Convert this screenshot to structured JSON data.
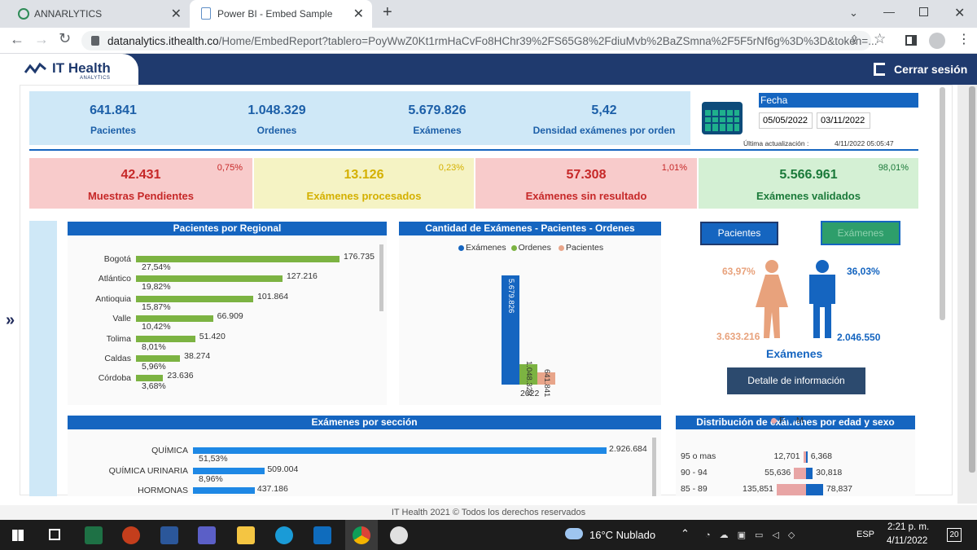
{
  "browser": {
    "tabs": [
      {
        "title": "ANNARLYTICS",
        "active": false
      },
      {
        "title": "Power BI - Embed Sample",
        "active": true
      }
    ],
    "url_domain": "datanalytics.ithealth.co",
    "url_path": "/Home/EmbedReport?tablero=PoyWwZ0Kt1rmHaCvFo8HChr39%2FS65G8%2FdiuMvb%2BaZSmna%2F5F5rNf6g%3D%3D&token=..."
  },
  "header": {
    "logo_line1": "IT Health",
    "logo_line2": "ANALYTICS",
    "logout_label": "Cerrar sesión"
  },
  "kpis": [
    {
      "value": "641.841",
      "label": "Pacientes"
    },
    {
      "value": "1.048.329",
      "label": "Ordenes"
    },
    {
      "value": "5.679.826",
      "label": "Exámenes"
    },
    {
      "value": "5,42",
      "label": "Densidad exámenes por orden"
    }
  ],
  "date_filter": {
    "label": "Fecha",
    "from": "05/05/2022",
    "to": "03/11/2022",
    "updated_label": "Última actualización :",
    "updated_value": "4/11/2022 05:05:47"
  },
  "status_cards": [
    {
      "value": "42.431",
      "label": "Muestras Pendientes",
      "pct": "0,75%",
      "bg": "#f8cbcb",
      "fg": "#c62828",
      "pctfg": "#c62828"
    },
    {
      "value": "13.126",
      "label": "Exámenes procesados",
      "pct": "0,23%",
      "bg": "#f5f3c4",
      "fg": "#d4b000",
      "pctfg": "#d4b000"
    },
    {
      "value": "57.308",
      "label": "Exámenes sin resultado",
      "pct": "1,01%",
      "bg": "#f8cbcb",
      "fg": "#c62828",
      "pctfg": "#c62828"
    },
    {
      "value": "5.566.961",
      "label": "Exámenes validados",
      "pct": "98,01%",
      "bg": "#d4f0d4",
      "fg": "#1b7a3a",
      "pctfg": "#1b7a3a"
    }
  ],
  "chart_data": [
    {
      "type": "bar",
      "title": "Pacientes por Regional",
      "categories": [
        "Bogotá",
        "Atlántico",
        "Antioquia",
        "Valle",
        "Tolima",
        "Caldas",
        "Córdoba"
      ],
      "values": [
        176735,
        127216,
        101864,
        66909,
        51420,
        38274,
        23636
      ],
      "value_labels": [
        "176.735",
        "127.216",
        "101.864",
        "66.909",
        "51.420",
        "38.274",
        "23.636"
      ],
      "pct_labels": [
        "27,54%",
        "19,82%",
        "15,87%",
        "10,42%",
        "8,01%",
        "5,96%",
        "3,68%"
      ],
      "color": "#7cb342"
    },
    {
      "type": "bar",
      "title": "Cantidad de Exámenes - Pacientes - Ordenes",
      "categories": [
        "2022"
      ],
      "series": [
        {
          "name": "Exámenes",
          "values": [
            5679826
          ],
          "label": "5.679.826",
          "color": "#1565c0"
        },
        {
          "name": "Ordenes",
          "values": [
            1048329
          ],
          "label": "1.048.329",
          "color": "#7cb342"
        },
        {
          "name": "Pacientes",
          "values": [
            641841
          ],
          "label": "641.841",
          "color": "#e8a58a"
        }
      ]
    },
    {
      "type": "bar",
      "title": "Exámenes por sección",
      "categories": [
        "QUÍMICA",
        "QUÍMICA URINARIA",
        "HORMONAS"
      ],
      "values": [
        2926684,
        509004,
        437186
      ],
      "value_labels": [
        "2.926.684",
        "509.004",
        "437.186"
      ],
      "pct_labels": [
        "51,53%",
        "8,96%",
        ""
      ],
      "color": "#1e88e5"
    },
    {
      "type": "bar",
      "title": "Distribución de exámenes por edad y sexo",
      "legend": [
        "F",
        "M"
      ],
      "categories": [
        "95 o mas",
        "90 - 94",
        "85 - 89"
      ],
      "series": [
        {
          "name": "F",
          "values": [
            12701,
            55636,
            135851
          ],
          "labels": [
            "12,701",
            "55,636",
            "135,851"
          ],
          "color": "#e8a5a5"
        },
        {
          "name": "M",
          "values": [
            6368,
            30818,
            78837
          ],
          "labels": [
            "6,368",
            "30,818",
            "78,837"
          ],
          "color": "#1565c0"
        }
      ]
    }
  ],
  "gender": {
    "btn_pacientes": "Pacientes",
    "btn_examenes": "Exámenes",
    "female_pct": "63,97%",
    "male_pct": "36,03%",
    "female_value": "3.633.216",
    "male_value": "2.046.550",
    "caption": "Exámenes",
    "detail_button": "Detalle de información"
  },
  "footer": "IT Health 2021 © Todos los derechos reservados",
  "taskbar": {
    "weather": "16°C  Nublado",
    "lang": "ESP",
    "time": "2:21 p. m.",
    "date": "4/11/2022",
    "notif": "20"
  }
}
